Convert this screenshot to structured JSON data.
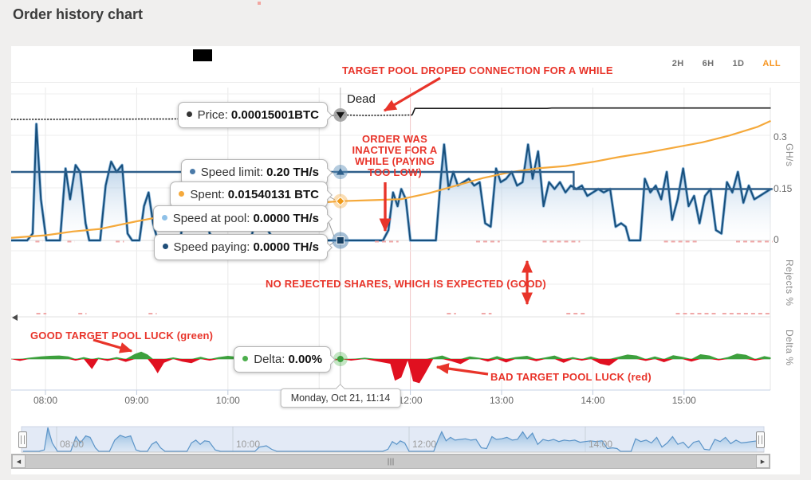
{
  "page": {
    "title": "Order history chart"
  },
  "toolbar": {
    "ranges": [
      "2H",
      "6H",
      "1D",
      "ALL"
    ],
    "active_range": "ALL"
  },
  "tooltips": {
    "price": {
      "label": "Price:",
      "value": "0.00015001BTC",
      "dot_color": "#333333"
    },
    "speed_limit": {
      "label": "Speed limit:",
      "value": "0.20 TH/s",
      "dot_color": "#4a7aa8"
    },
    "spent": {
      "label": "Spent:",
      "value": "0.01540131 BTC",
      "dot_color": "#f5a93b"
    },
    "speed_at_pool": {
      "label": "Speed at pool:",
      "value": "0.0000 TH/s",
      "dot_color": "#8fc1e8"
    },
    "speed_paying": {
      "label": "Speed paying:",
      "value": "0.0000 TH/s",
      "dot_color": "#1f4e79"
    },
    "delta": {
      "label": "Delta:",
      "value": "0.00%",
      "dot_color": "#4cae4c"
    },
    "date": {
      "value": "Monday, Oct 21, 11:14"
    }
  },
  "annotations": {
    "target_pool": "TARGET POOL DROPED CONNECTION FOR A WHILE",
    "dead": "Dead",
    "inactive": "ORDER WAS INACTIVE FOR A WHILE (PAYING TOO LOW)",
    "no_rejects": "NO REJECTED SHARES, WHICH IS EXPECTED (GOOD)",
    "good_luck": "GOOD TARGET POOL LUCK (green)",
    "bad_luck": "BAD TARGET POOL LUCK (red)",
    "annotation_color": "#e8342a"
  },
  "axes": {
    "x_labels": [
      {
        "label": "08:00",
        "hour": 8
      },
      {
        "label": "09:00",
        "hour": 9
      },
      {
        "label": "10:00",
        "hour": 10
      },
      {
        "label": "11:00",
        "hour": 11
      },
      {
        "label": "12:00",
        "hour": 12
      },
      {
        "label": "13:00",
        "hour": 13
      },
      {
        "label": "14:00",
        "hour": 14
      },
      {
        "label": "15:00",
        "hour": 15
      }
    ],
    "navigator_labels": [
      {
        "label": "08:00",
        "hour": 8
      },
      {
        "label": "10:00",
        "hour": 10
      },
      {
        "label": "12:00",
        "hour": 12
      },
      {
        "label": "14:00",
        "hour": 14
      }
    ],
    "y_right": {
      "ticks": [
        {
          "label": "0.3",
          "value": 0.3
        },
        {
          "label": "0.15",
          "value": 0.15
        },
        {
          "label": "0",
          "value": 0
        }
      ],
      "pane_titles": [
        "GH/s",
        "Rejects %",
        "Delta %"
      ]
    }
  },
  "chart_data": {
    "type": "area",
    "title": "Order history chart",
    "x_unit": "time of day, Monday Oct 21",
    "x_range_hours": [
      7.62,
      15.97
    ],
    "cursor_hour": 11.233,
    "panes": [
      "speed/price/spent (GH/s axis: 0.3, 0.15, 0)",
      "Rejects %",
      "Delta %"
    ],
    "series": {
      "price": {
        "name": "Price",
        "unit": "BTC",
        "color": "#1a1a1a",
        "style": "dotted-then-solid",
        "points": [
          [
            7.62,
            0.000149
          ],
          [
            9.5,
            0.0001491
          ],
          [
            10.6,
            0.0001492
          ],
          [
            10.9,
            0.0001495
          ],
          [
            11.233,
            0.00015001
          ],
          [
            11.5,
            0.0001499
          ],
          [
            12.02,
            0.00015
          ],
          [
            12.05,
            0.0001515
          ],
          [
            13.5,
            0.0001515
          ],
          [
            13.55,
            0.0001516
          ],
          [
            15.95,
            0.0001516
          ]
        ]
      },
      "speed_limit": {
        "name": "Speed limit",
        "unit": "TH/s",
        "color": "#2e5f8a",
        "points": [
          [
            7.62,
            0.2
          ],
          [
            13.79,
            0.2
          ],
          [
            13.79,
            0.15
          ],
          [
            15.97,
            0.15
          ]
        ]
      },
      "spent": {
        "name": "Spent",
        "unit": "BTC",
        "color": "#f5a93b",
        "points": [
          [
            7.62,
            0.001
          ],
          [
            8.0,
            0.002
          ],
          [
            8.3,
            0.0035
          ],
          [
            8.6,
            0.0045
          ],
          [
            9.0,
            0.0075
          ],
          [
            9.3,
            0.0095
          ],
          [
            9.6,
            0.0115
          ],
          [
            10.0,
            0.0125
          ],
          [
            10.5,
            0.0133
          ],
          [
            11.0,
            0.0148
          ],
          [
            11.233,
            0.0154
          ],
          [
            11.6,
            0.0158
          ],
          [
            11.9,
            0.0162
          ],
          [
            12.2,
            0.0185
          ],
          [
            12.5,
            0.0215
          ],
          [
            12.8,
            0.0245
          ],
          [
            13.1,
            0.0268
          ],
          [
            13.4,
            0.0283
          ],
          [
            13.7,
            0.0292
          ],
          [
            14.0,
            0.0308
          ],
          [
            14.3,
            0.0328
          ],
          [
            14.6,
            0.0345
          ],
          [
            14.9,
            0.0365
          ],
          [
            15.2,
            0.0385
          ],
          [
            15.5,
            0.0412
          ],
          [
            15.8,
            0.0445
          ],
          [
            15.95,
            0.0469
          ]
        ]
      },
      "speed_at_pool": {
        "name": "Speed at pool / Speed paying",
        "unit": "TH/s",
        "line_color": "#174f7c",
        "outline_color": "#8db8dd",
        "fill_top": "#4e8bc5",
        "points": [
          [
            7.62,
            0
          ],
          [
            7.8,
            0
          ],
          [
            7.86,
            0.02
          ],
          [
            7.9,
            0.34
          ],
          [
            7.95,
            0.12
          ],
          [
            8.01,
            0
          ],
          [
            8.16,
            0
          ],
          [
            8.22,
            0.21
          ],
          [
            8.27,
            0.12
          ],
          [
            8.33,
            0.22
          ],
          [
            8.38,
            0.2
          ],
          [
            8.44,
            0.05
          ],
          [
            8.48,
            0
          ],
          [
            8.6,
            0
          ],
          [
            8.66,
            0.16
          ],
          [
            8.72,
            0.23
          ],
          [
            8.78,
            0.2
          ],
          [
            8.84,
            0.22
          ],
          [
            8.9,
            0.02
          ],
          [
            8.95,
            0
          ],
          [
            9.03,
            0
          ],
          [
            9.08,
            0.1
          ],
          [
            9.13,
            0.14
          ],
          [
            9.18,
            0.05
          ],
          [
            9.23,
            0
          ],
          [
            9.48,
            0
          ],
          [
            9.53,
            0.12
          ],
          [
            9.58,
            0.16
          ],
          [
            9.63,
            0.1
          ],
          [
            9.68,
            0.15
          ],
          [
            9.73,
            0.14
          ],
          [
            9.8,
            0.02
          ],
          [
            9.86,
            0
          ],
          [
            10.25,
            0
          ],
          [
            10.3,
            0.06
          ],
          [
            10.38,
            0.08
          ],
          [
            10.44,
            0.03
          ],
          [
            10.5,
            0
          ],
          [
            11.7,
            0
          ],
          [
            11.76,
            0.03
          ],
          [
            11.81,
            0.14
          ],
          [
            11.86,
            0.1
          ],
          [
            11.9,
            0.15
          ],
          [
            11.95,
            0.12
          ],
          [
            12.0,
            0
          ],
          [
            12.28,
            0
          ],
          [
            12.33,
            0.17
          ],
          [
            12.37,
            0.28
          ],
          [
            12.42,
            0.15
          ],
          [
            12.47,
            0.2
          ],
          [
            12.52,
            0.16
          ],
          [
            12.58,
            0.17
          ],
          [
            12.64,
            0.18
          ],
          [
            12.7,
            0.16
          ],
          [
            12.76,
            0.17
          ],
          [
            12.82,
            0.05
          ],
          [
            12.88,
            0.04
          ],
          [
            12.94,
            0.21
          ],
          [
            12.99,
            0.17
          ],
          [
            13.05,
            0.18
          ],
          [
            13.11,
            0.2
          ],
          [
            13.17,
            0.16
          ],
          [
            13.23,
            0.17
          ],
          [
            13.29,
            0.28
          ],
          [
            13.34,
            0.18
          ],
          [
            13.4,
            0.26
          ],
          [
            13.46,
            0.1
          ],
          [
            13.52,
            0.17
          ],
          [
            13.58,
            0.15
          ],
          [
            13.64,
            0.17
          ],
          [
            13.7,
            0.14
          ],
          [
            13.76,
            0.16
          ],
          [
            13.82,
            0.15
          ],
          [
            13.88,
            0.16
          ],
          [
            13.94,
            0.13
          ],
          [
            14.0,
            0.14
          ],
          [
            14.06,
            0.15
          ],
          [
            14.12,
            0.14
          ],
          [
            14.19,
            0.15
          ],
          [
            14.25,
            0.04
          ],
          [
            14.31,
            0.05
          ],
          [
            14.36,
            0.04
          ],
          [
            14.4,
            0
          ],
          [
            14.52,
            0
          ],
          [
            14.57,
            0.18
          ],
          [
            14.63,
            0.14
          ],
          [
            14.69,
            0.16
          ],
          [
            14.75,
            0.12
          ],
          [
            14.81,
            0.2
          ],
          [
            14.87,
            0.06
          ],
          [
            14.93,
            0.12
          ],
          [
            14.99,
            0.21
          ],
          [
            15.05,
            0.1
          ],
          [
            15.11,
            0.13
          ],
          [
            15.17,
            0.05
          ],
          [
            15.23,
            0.13
          ],
          [
            15.29,
            0.15
          ],
          [
            15.35,
            0.03
          ],
          [
            15.41,
            0.02
          ],
          [
            15.47,
            0.17
          ],
          [
            15.53,
            0.14
          ],
          [
            15.59,
            0.2
          ],
          [
            15.65,
            0.11
          ],
          [
            15.71,
            0.16
          ],
          [
            15.77,
            0.12
          ],
          [
            15.83,
            0.13
          ],
          [
            15.89,
            0.14
          ],
          [
            15.95,
            0.15
          ]
        ]
      },
      "rejects": {
        "name": "Rejected speed",
        "unit": "TH/s",
        "color": "#f0a8a8",
        "value": 0,
        "zero_line_segments": [
          [
            7.89,
            7.97
          ],
          [
            8.24,
            8.32
          ],
          [
            8.77,
            8.86
          ],
          [
            9.69,
            9.77
          ],
          [
            11.61,
            11.87
          ],
          [
            12.72,
            12.98
          ],
          [
            13.45,
            13.86
          ],
          [
            14.78,
            15.17
          ],
          [
            15.57,
            15.97
          ]
        ],
        "pane_segments": [
          [
            7.9,
            8.01
          ],
          [
            8.36,
            8.45
          ],
          [
            9.13,
            9.22
          ],
          [
            12.4,
            12.5
          ],
          [
            12.78,
            12.89
          ],
          [
            13.71,
            13.94
          ],
          [
            14.91,
            15.37
          ],
          [
            15.42,
            15.97
          ]
        ]
      },
      "delta": {
        "name": "Delta",
        "unit": "%",
        "positive_color": "#3da03d",
        "negative_color": "#e01020",
        "zero_line_color": "#86b786",
        "points": [
          [
            7.62,
            0
          ],
          [
            7.72,
            -0.6
          ],
          [
            7.82,
            0.4
          ],
          [
            7.95,
            0.8
          ],
          [
            8.05,
            1.0
          ],
          [
            8.15,
            1.1
          ],
          [
            8.25,
            0.8
          ],
          [
            8.33,
            -0.5
          ],
          [
            8.42,
            0.6
          ],
          [
            8.51,
            -3.2
          ],
          [
            8.58,
            0.4
          ],
          [
            8.68,
            -0.6
          ],
          [
            8.78,
            0.6
          ],
          [
            8.88,
            -0.9
          ],
          [
            8.98,
            1.6
          ],
          [
            9.05,
            2.3
          ],
          [
            9.12,
            1.4
          ],
          [
            9.18,
            -2.2
          ],
          [
            9.23,
            -4.5
          ],
          [
            9.3,
            -1.2
          ],
          [
            9.4,
            0.5
          ],
          [
            9.5,
            -0.8
          ],
          [
            9.6,
            -1.3
          ],
          [
            9.7,
            0.7
          ],
          [
            9.8,
            -0.5
          ],
          [
            9.9,
            0.6
          ],
          [
            10.0,
            1.0
          ],
          [
            10.1,
            0.7
          ],
          [
            10.2,
            -0.6
          ],
          [
            10.32,
            1.3
          ],
          [
            10.42,
            2.6
          ],
          [
            10.5,
            1.8
          ],
          [
            10.58,
            -0.8
          ],
          [
            10.65,
            -1.2
          ],
          [
            10.75,
            0.8
          ],
          [
            10.85,
            1.3
          ],
          [
            10.95,
            1.1
          ],
          [
            11.05,
            0.5
          ],
          [
            11.15,
            -0.7
          ],
          [
            11.233,
            0.0
          ],
          [
            11.35,
            -0.5
          ],
          [
            11.5,
            0.4
          ],
          [
            11.65,
            -0.8
          ],
          [
            11.78,
            -1.5
          ],
          [
            11.83,
            -6.8
          ],
          [
            11.9,
            -5.8
          ],
          [
            11.97,
            -0.5
          ],
          [
            12.03,
            -7.0
          ],
          [
            12.1,
            -7.6
          ],
          [
            12.17,
            -4.2
          ],
          [
            12.25,
            0.5
          ],
          [
            12.35,
            1.1
          ],
          [
            12.45,
            -0.7
          ],
          [
            12.55,
            -1.6
          ],
          [
            12.65,
            0.8
          ],
          [
            12.75,
            0.4
          ],
          [
            12.85,
            -0.8
          ],
          [
            12.95,
            0.9
          ],
          [
            13.05,
            -1.1
          ],
          [
            13.15,
            0.6
          ],
          [
            13.28,
            1.0
          ],
          [
            13.38,
            -0.7
          ],
          [
            13.48,
            0.5
          ],
          [
            13.58,
            1.1
          ],
          [
            13.68,
            -1.2
          ],
          [
            13.78,
            0.6
          ],
          [
            13.88,
            -0.5
          ],
          [
            13.98,
            0.8
          ],
          [
            14.08,
            -1.5
          ],
          [
            14.18,
            -2.1
          ],
          [
            14.28,
            0.7
          ],
          [
            14.38,
            1.4
          ],
          [
            14.48,
            1.1
          ],
          [
            14.58,
            -0.6
          ],
          [
            14.68,
            0.8
          ],
          [
            14.78,
            -1.0
          ],
          [
            14.88,
            1.2
          ],
          [
            14.98,
            0.7
          ],
          [
            15.08,
            -0.8
          ],
          [
            15.18,
            1.5
          ],
          [
            15.28,
            1.1
          ],
          [
            15.38,
            -0.4
          ],
          [
            15.48,
            0.6
          ],
          [
            15.58,
            1.7
          ],
          [
            15.68,
            1.3
          ],
          [
            15.78,
            -0.5
          ],
          [
            15.88,
            0.9
          ],
          [
            15.95,
            0.5
          ]
        ]
      }
    },
    "legend_position": "none",
    "grid": true
  }
}
